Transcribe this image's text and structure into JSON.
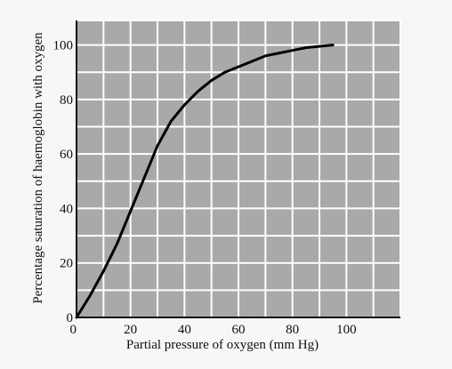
{
  "chart_data": {
    "type": "line",
    "title": "",
    "xlabel": "Partial pressure of oxygen (mm Hg)",
    "ylabel": "Percentage saturation of haemoglobin with oxygen",
    "xlim": [
      0,
      120
    ],
    "ylim": [
      0,
      100
    ],
    "xticks": [
      "0",
      "20",
      "40",
      "60",
      "80",
      "100"
    ],
    "yticks": [
      "0",
      "20",
      "40",
      "60",
      "80",
      "100"
    ],
    "grid": true,
    "x_minor_step": 10,
    "y_minor_step": 10,
    "colors": {
      "plot_background": "#a9a9a9",
      "grid": "#ffffff",
      "curve": "#000000",
      "page": "#f7f7f5"
    },
    "series": [
      {
        "x": [
          0,
          5,
          10,
          15,
          20,
          25,
          30,
          35,
          40,
          45,
          50,
          55,
          60,
          65,
          70,
          75,
          80,
          85,
          90,
          95
        ],
        "y": [
          0,
          8,
          17,
          27,
          39,
          51,
          63,
          72,
          78,
          83,
          87,
          90,
          92,
          94,
          96,
          97,
          98,
          99,
          99.5,
          100
        ]
      }
    ]
  }
}
